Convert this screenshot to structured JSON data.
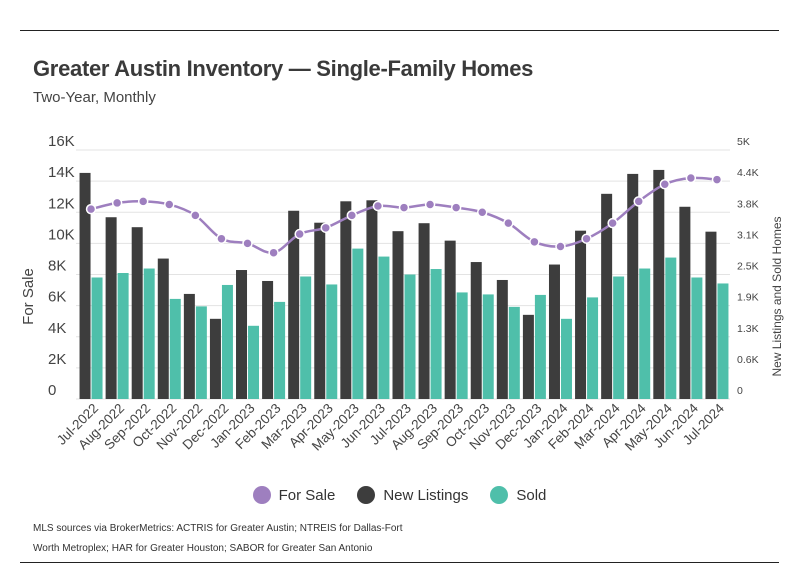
{
  "title": "Greater Austin Inventory — Single-Family Homes",
  "subtitle": "Two-Year, Monthly",
  "footnote_line1": "MLS sources via BrokerMetrics: ACTRIS for Greater Austin; NTREIS for Dallas-Fort",
  "footnote_line2": "Worth Metroplex; HAR for Greater Houston; SABOR for Greater San Antonio",
  "colors": {
    "for_sale": "#9e7fbf",
    "new_listings": "#3d3d3d",
    "sold": "#4fbfaa",
    "grid": "#e3e3e3"
  },
  "chart_data": {
    "type": "bar",
    "categories": [
      "Jul-2022",
      "Aug-2022",
      "Sep-2022",
      "Oct-2022",
      "Nov-2022",
      "Dec-2022",
      "Jan-2023",
      "Feb-2023",
      "Mar-2023",
      "Apr-2023",
      "May-2023",
      "Jun-2023",
      "Jul-2023",
      "Aug-2023",
      "Sep-2023",
      "Oct-2023",
      "Nov-2023",
      "Dec-2023",
      "Jan-2024",
      "Feb-2024",
      "Mar-2024",
      "Apr-2024",
      "May-2024",
      "Jun-2024",
      "Jul-2024"
    ],
    "ylabel": "For Sale",
    "y2label": "New Listings and Sold Homes",
    "ylim": [
      0,
      16000
    ],
    "y2lim": [
      0,
      5000
    ],
    "yticks": [
      "0",
      "2K",
      "4K",
      "6K",
      "8K",
      "10K",
      "12K",
      "14K",
      "16K"
    ],
    "y2ticks": [
      "0",
      "0.6K",
      "1.3K",
      "1.9K",
      "2.5K",
      "3.1K",
      "3.8K",
      "4.4K",
      "5K"
    ],
    "grid": true,
    "legend_position": "bottom",
    "series": [
      {
        "name": "For Sale",
        "type": "line",
        "axis": "left",
        "values": [
          12200,
          12600,
          12700,
          12500,
          11800,
          10300,
          10000,
          9400,
          10600,
          11000,
          11800,
          12400,
          12300,
          12500,
          12300,
          12000,
          11300,
          10100,
          9800,
          10300,
          11300,
          12700,
          13800,
          14200,
          14100
        ]
      },
      {
        "name": "New Listings",
        "type": "bar",
        "axis": "right",
        "values": [
          4540,
          3650,
          3450,
          2820,
          2110,
          1610,
          2590,
          2370,
          3780,
          3540,
          3970,
          3990,
          3370,
          3530,
          3180,
          2750,
          2390,
          1690,
          2700,
          3380,
          4120,
          4520,
          4600,
          3860,
          3360
        ]
      },
      {
        "name": "Sold",
        "type": "bar",
        "axis": "right",
        "values": [
          2440,
          2530,
          2620,
          2010,
          1860,
          2290,
          1470,
          1950,
          2460,
          2300,
          3020,
          2860,
          2500,
          2610,
          2140,
          2100,
          1850,
          2090,
          1610,
          2040,
          2460,
          2620,
          2840,
          2440,
          2320
        ]
      }
    ]
  }
}
